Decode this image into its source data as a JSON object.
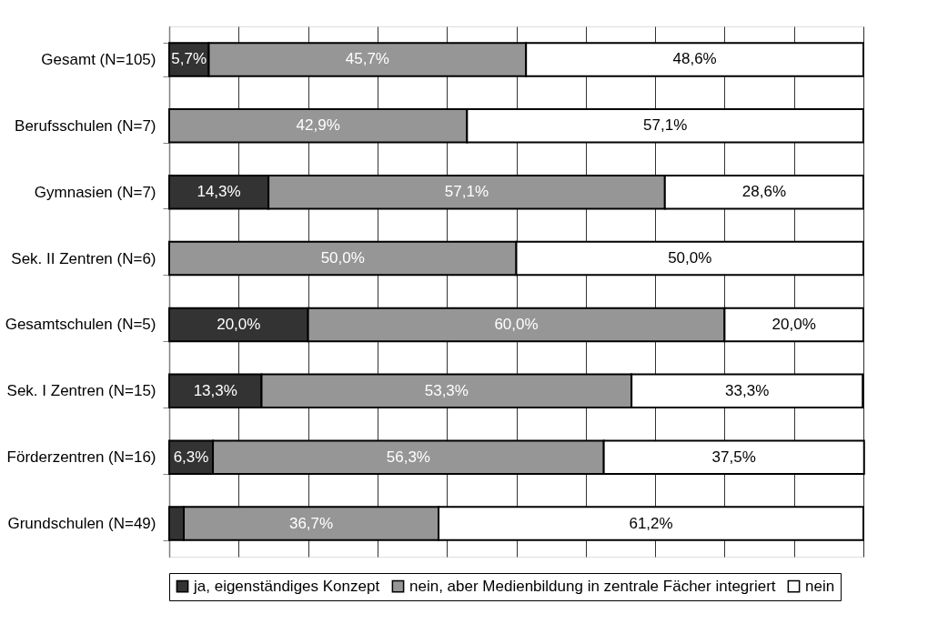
{
  "chart_data": {
    "type": "bar",
    "orientation": "horizontal",
    "stacked": true,
    "categories": [
      "Gesamt (N=105)",
      "Berufsschulen (N=7)",
      "Gymnasien (N=7)",
      "Sek. II Zentren (N=6)",
      "Gesamtschulen (N=5)",
      "Sek. I Zentren (N=15)",
      "Förderzentren (N=16)",
      "Grundschulen (N=49)"
    ],
    "series": [
      {
        "name": "ja, eigenständiges Konzept",
        "color": "#333333",
        "values": [
          5.7,
          null,
          14.3,
          null,
          20.0,
          13.3,
          6.3,
          2.1
        ],
        "value_labels": [
          "5,7%",
          null,
          "14,3%",
          null,
          "20,0%",
          "13,3%",
          "6,3%",
          null
        ]
      },
      {
        "name": "nein, aber Medienbildung in zentrale Fächer integriert",
        "color": "#969696",
        "values": [
          45.7,
          42.9,
          57.1,
          50.0,
          60.0,
          53.3,
          56.3,
          36.7
        ],
        "value_labels": [
          "45,7%",
          "42,9%",
          "57,1%",
          "50,0%",
          "60,0%",
          "53,3%",
          "56,3%",
          "36,7%"
        ]
      },
      {
        "name": "nein",
        "color": "#ffffff",
        "values": [
          48.6,
          57.1,
          28.6,
          50.0,
          20.0,
          33.3,
          37.5,
          61.2
        ],
        "value_labels": [
          "48,6%",
          "57,1%",
          "28,6%",
          "50,0%",
          "20,0%",
          "33,3%",
          "37,5%",
          "61,2%"
        ]
      }
    ],
    "xlim": [
      0,
      100
    ],
    "xticks": [
      {
        "value": 0,
        "label": null
      },
      {
        "value": 10,
        "label": null
      },
      {
        "value": 20,
        "label": null
      },
      {
        "value": 30,
        "label": null
      },
      {
        "value": 40,
        "label": null
      },
      {
        "value": 50,
        "label": null
      },
      {
        "value": 60,
        "label": null
      },
      {
        "value": 70,
        "label": null
      },
      {
        "value": 80,
        "label": null
      },
      {
        "value": 90,
        "label": null
      },
      {
        "value": 100,
        "label": null
      }
    ],
    "tick_labels": "y",
    "grid": "x",
    "legend": "bottom"
  }
}
